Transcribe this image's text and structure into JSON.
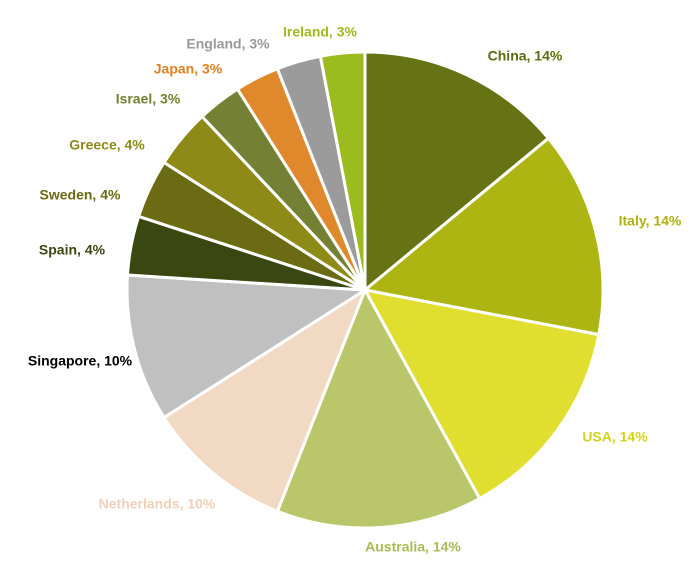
{
  "chart_data": {
    "type": "pie",
    "values": [
      14,
      14,
      14,
      14,
      10,
      10,
      4,
      4,
      4,
      3,
      3,
      3,
      3
    ],
    "value_labels": [
      "China, 14%",
      "Italy, 14%",
      "USA, 14%",
      "Australia, 14%",
      "Netherlands, 10%",
      "Singapore, 10%",
      "Spain, 4%",
      "Sweden, 4%",
      "Greece, 4%",
      "Israel, 3%",
      "Japan, 3%",
      "England, 3%",
      "Ireland, 3%"
    ],
    "colors": [
      "#667314",
      "#adb513",
      "#e0de2e",
      "#b9c66a",
      "#f2d9c4",
      "#c0c0c0",
      "#3a4710",
      "#6a6b12",
      "#8e8a17",
      "#748034",
      "#e0882c",
      "#9b9b9b",
      "#9bbb1f"
    ],
    "label_colors": [
      "#5b6b10",
      "#b0b010",
      "#d4d21e",
      "#aabb55",
      "#f0d0b8",
      "#000000",
      "#3a4710",
      "#6a6b12",
      "#8e8a17",
      "#748034",
      "#e08020",
      "#999999",
      "#9bbb1f"
    ]
  }
}
